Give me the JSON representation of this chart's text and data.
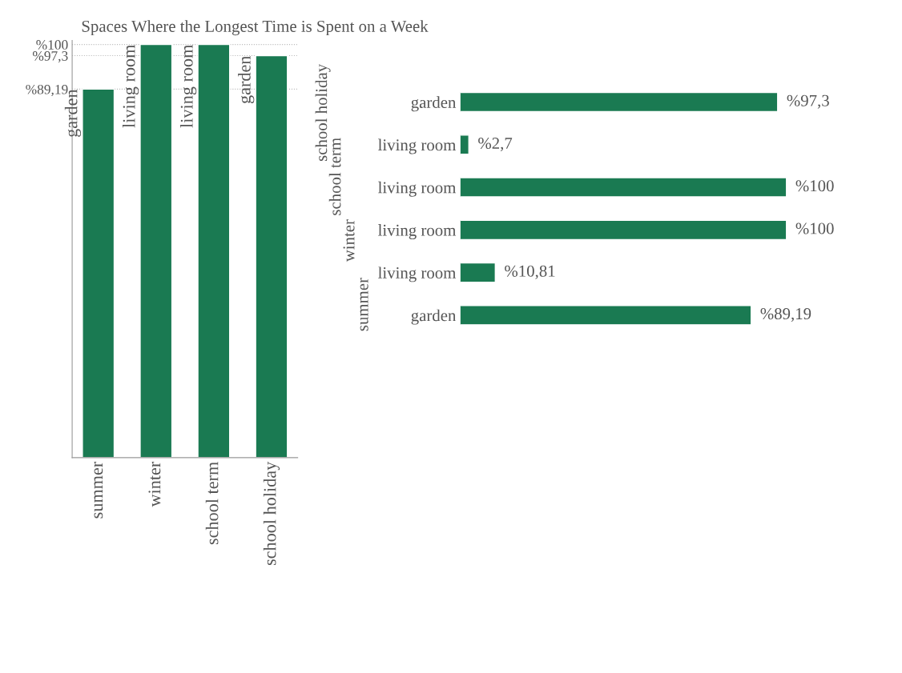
{
  "chart_data": [
    {
      "type": "bar",
      "title": "Spaces Where the Longest Time is Spent on a Week",
      "categories": [
        "summer",
        "winter",
        "school term",
        "school holiday"
      ],
      "values": [
        89.19,
        100,
        100,
        97.3
      ],
      "color": "#1a7a52",
      "ylim": [
        0,
        101
      ],
      "yticks": [
        {
          "value": 89.19,
          "label": "%89,19"
        },
        {
          "value": 97.3,
          "label": "%97,3"
        },
        {
          "value": 100,
          "label": "%100"
        }
      ],
      "grid": "y",
      "annotations": [
        {
          "text": "garden",
          "x": "summer",
          "y": 89.19
        },
        {
          "text": "living room",
          "x": "winter",
          "y": 100
        },
        {
          "text": "living room",
          "x": "school term",
          "y": 100
        },
        {
          "text": "garden",
          "x": "school holiday",
          "y": 97.3
        }
      ]
    },
    {
      "type": "bar",
      "orientation": "horizontal",
      "categories": [
        "garden",
        "living room",
        "living room",
        "living room",
        "living room",
        "garden"
      ],
      "values": [
        97.3,
        2.7,
        100,
        100,
        10.81,
        89.19
      ],
      "color": "#1a7a52",
      "grid": false,
      "tick_labels": "y",
      "value_labels": [
        "%97,3",
        "%2,7",
        "%100",
        "%100",
        "%10,81",
        "%89,19"
      ],
      "annotations": [
        "school holiday",
        "school term",
        "winter",
        "summer"
      ]
    }
  ]
}
